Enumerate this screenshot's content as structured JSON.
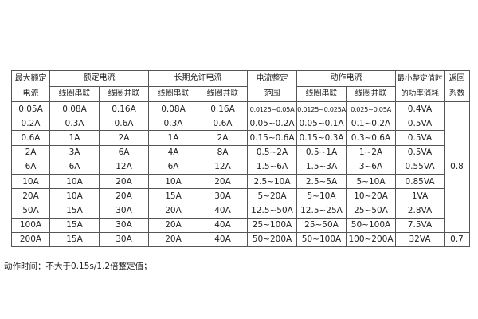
{
  "table": {
    "headers": {
      "max_rated": "最大额定电流",
      "rated_current": "额定电流",
      "long_term": "长期允许电流",
      "setting_range": "电流整定范围",
      "action_current": "动作电流",
      "min_power": "最小整定值时的功率消耗",
      "return_coef": "返回系数",
      "series": "线圈串联",
      "parallel": "线圈并联"
    },
    "rows": [
      [
        "0.05A",
        "0.08A",
        "0.16A",
        "0.08A",
        "0.16A",
        "0.0125~0.05A",
        "0.0125~0.025A",
        "0.025~0.05A",
        "0.4VA"
      ],
      [
        "0.2A",
        "0.3A",
        "0.6A",
        "0.3A",
        "0.6A",
        "0.05~0.2A",
        "0.05~0.1A",
        "0.1~0.2A",
        "0.5VA"
      ],
      [
        "0.6A",
        "1A",
        "2A",
        "1A",
        "2A",
        "0.15~0.6A",
        "0.15~0.3A",
        "0.3~0.6A",
        "0.5VA"
      ],
      [
        "2A",
        "3A",
        "6A",
        "4A",
        "8A",
        "0.5~2A",
        "0.5~1A",
        "1~2A",
        "0.5VA"
      ],
      [
        "6A",
        "6A",
        "12A",
        "6A",
        "12A",
        "1.5~6A",
        "1.5~3A",
        "3~6A",
        "0.55VA"
      ],
      [
        "10A",
        "10A",
        "20A",
        "10A",
        "20A",
        "2.5~10A",
        "2.5~5A",
        "5~10A",
        "0.85VA"
      ],
      [
        "20A",
        "10A",
        "20A",
        "15A",
        "30A",
        "5~20A",
        "5~10A",
        "10~20A",
        "1VA"
      ],
      [
        "50A",
        "15A",
        "30A",
        "20A",
        "40A",
        "12.5~50A",
        "12.5~25A",
        "25~50A",
        "2.8VA"
      ],
      [
        "100A",
        "15A",
        "30A",
        "20A",
        "40A",
        "25~100A",
        "25~50A",
        "50~100A",
        "7.5VA"
      ],
      [
        "200A",
        "15A",
        "30A",
        "20A",
        "40A",
        "50~200A",
        "50~100A",
        "100~200A",
        "32VA"
      ]
    ],
    "return_coef_values": [
      "0.8",
      "0.7"
    ]
  },
  "footnote": "动作时间：不大于0.15s/1.2倍整定值；"
}
